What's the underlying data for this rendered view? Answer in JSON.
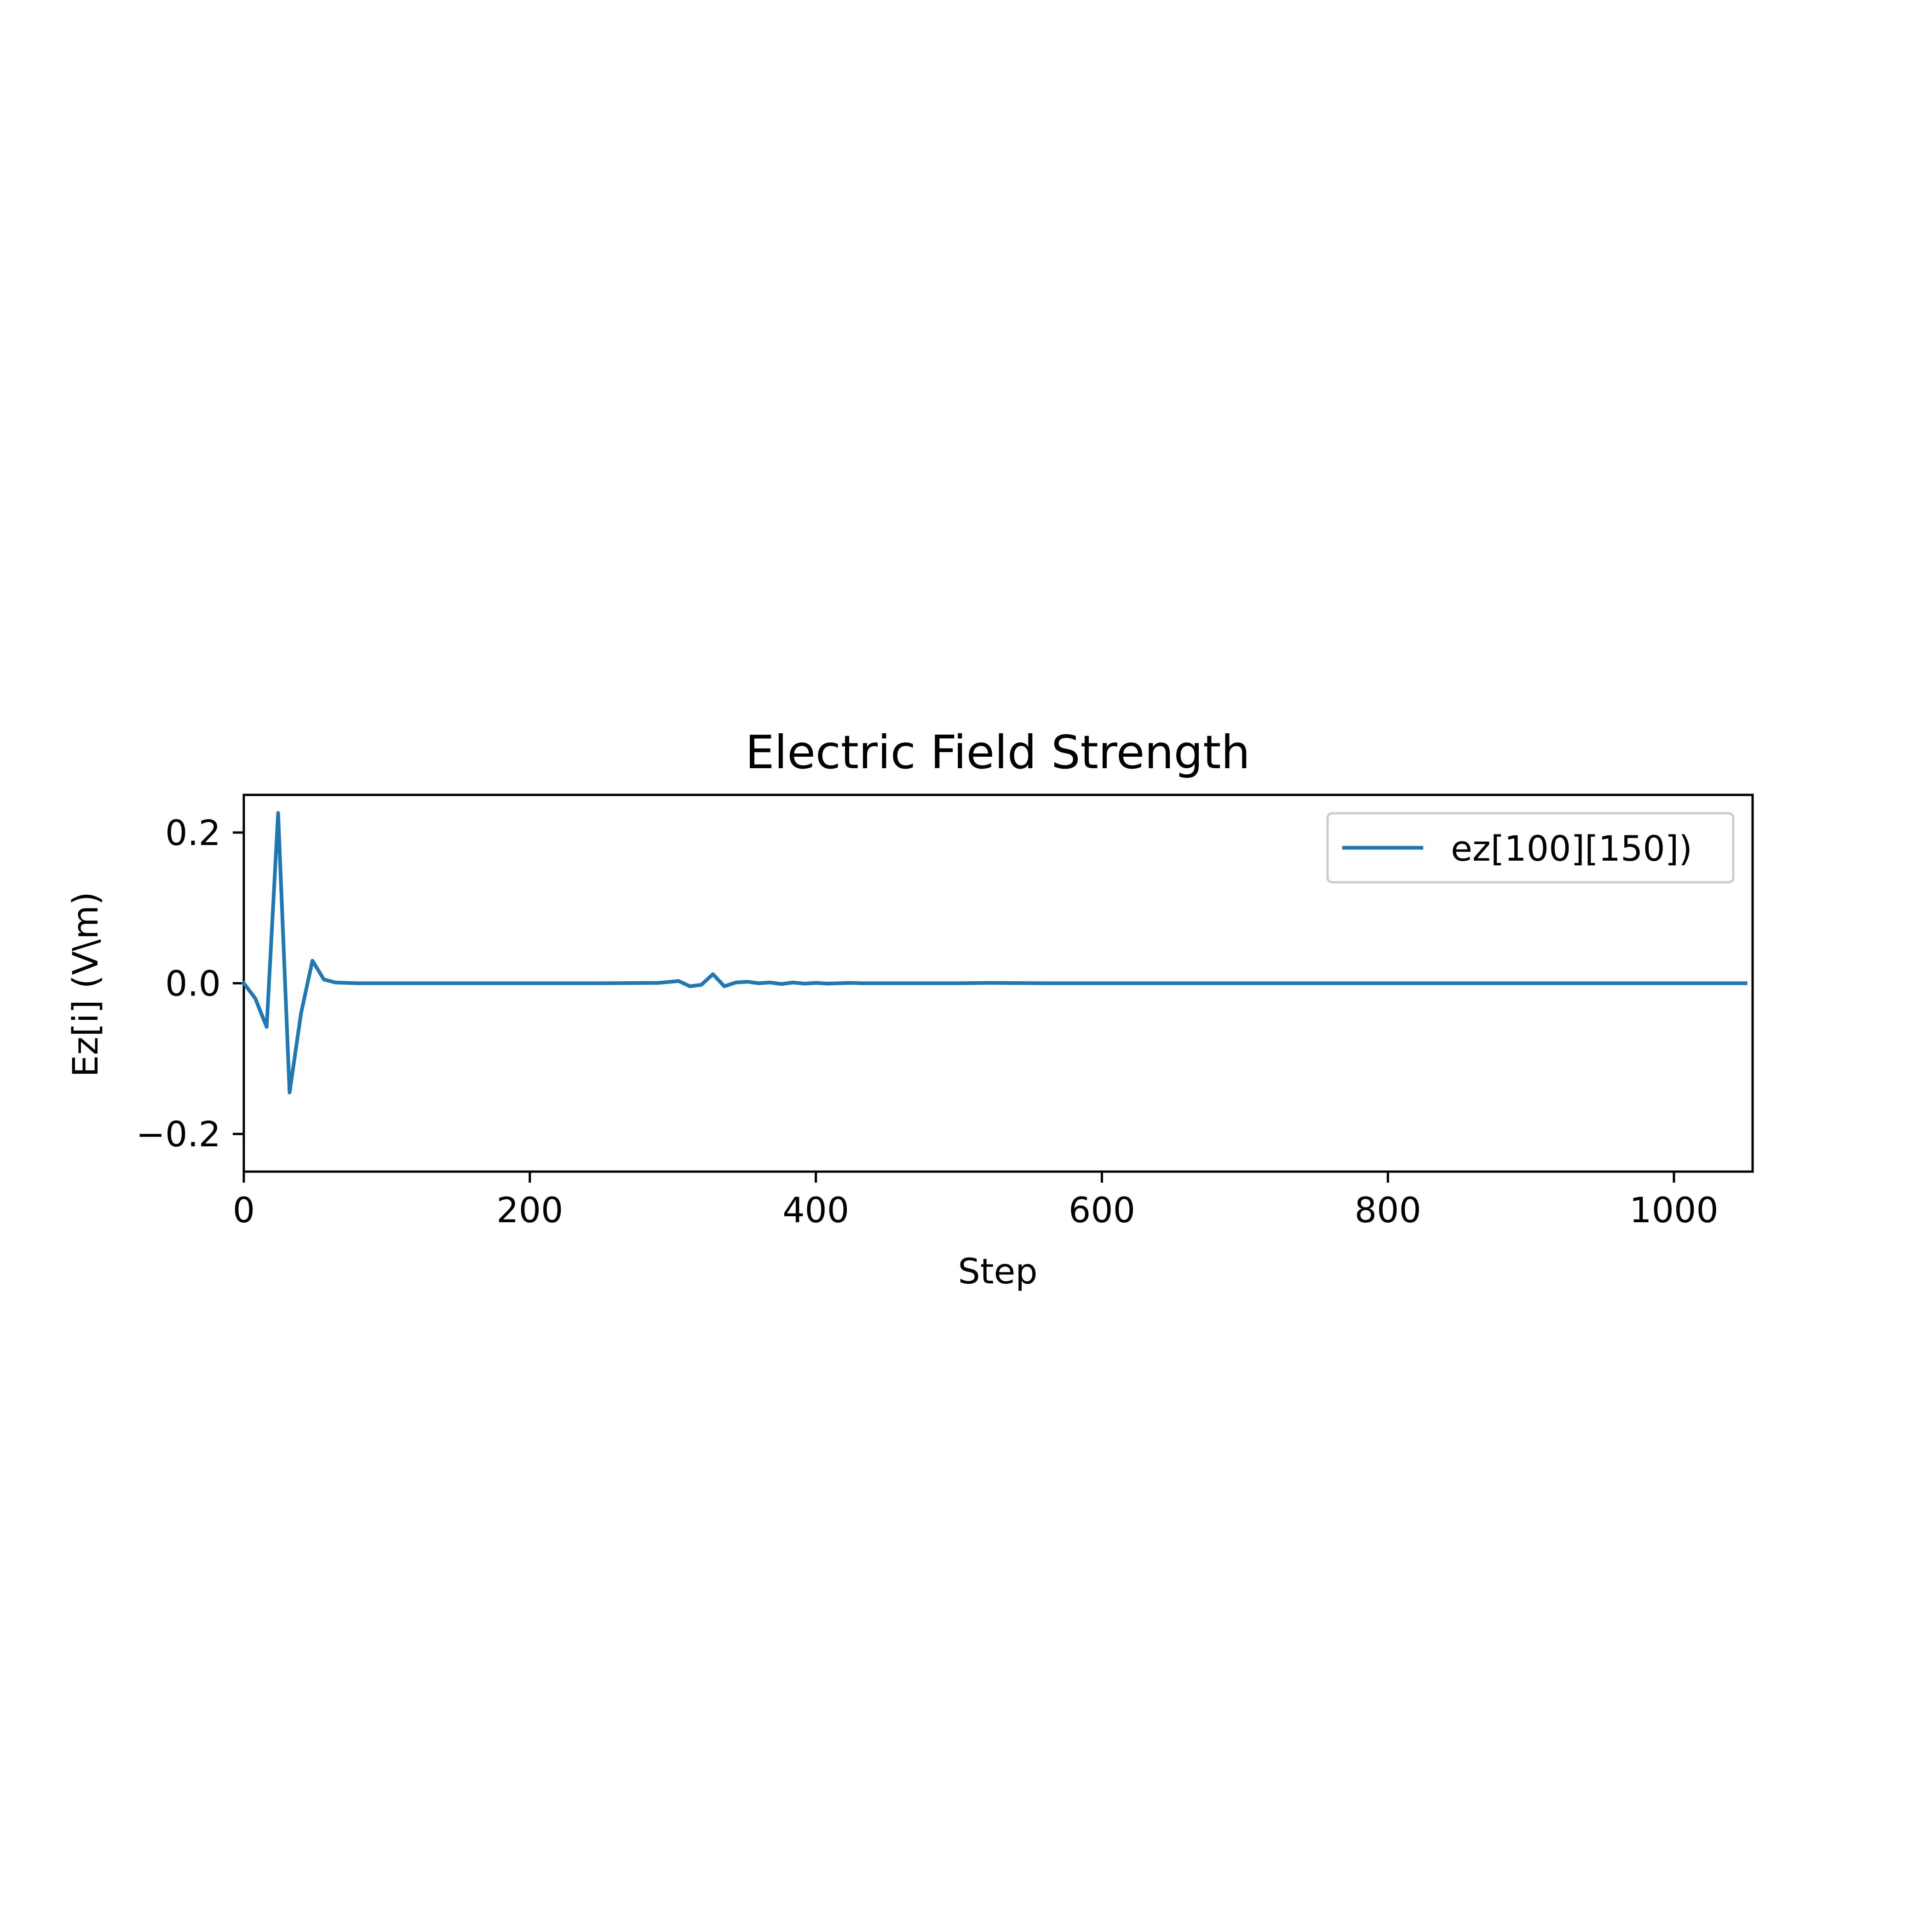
{
  "chart_data": {
    "type": "line",
    "title": "Electric Field Strength",
    "xlabel": "Step",
    "ylabel": "Ez[i] (V\\m)",
    "xlim": [
      0,
      1055
    ],
    "ylim": [
      -0.25,
      0.25
    ],
    "xticks": [
      0,
      200,
      400,
      600,
      800,
      1000
    ],
    "xtick_labels": [
      "0",
      "200",
      "400",
      "600",
      "800",
      "1000"
    ],
    "yticks": [
      -0.2,
      0.0,
      0.2
    ],
    "ytick_labels": [
      "−0.2",
      "0.0",
      "0.2"
    ],
    "grid": false,
    "legend_position": "upper right",
    "series": [
      {
        "name": "ez[100][150])",
        "color": "#1f77b4",
        "x": [
          0,
          8,
          16,
          24,
          32,
          40,
          48,
          56,
          64,
          72,
          80,
          100,
          150,
          200,
          250,
          290,
          296,
          304,
          312,
          320,
          328,
          336,
          344,
          352,
          360,
          368,
          376,
          384,
          392,
          400,
          408,
          416,
          424,
          432,
          440,
          460,
          500,
          520,
          560,
          1050
        ],
        "y": [
          0.0,
          -0.02,
          -0.058,
          0.226,
          -0.145,
          -0.04,
          0.03,
          0.005,
          0.001,
          0.0005,
          0.0,
          0.0,
          0.0,
          0.0,
          0.0,
          0.0005,
          0.0015,
          0.003,
          -0.004,
          -0.002,
          0.012,
          -0.004,
          0.001,
          0.002,
          0.0,
          0.001,
          -0.001,
          0.001,
          -0.0005,
          0.0005,
          -0.0005,
          0.0,
          0.0005,
          0.0,
          0.0,
          0.0,
          0.0,
          0.0005,
          0.0,
          0.0
        ]
      }
    ]
  }
}
